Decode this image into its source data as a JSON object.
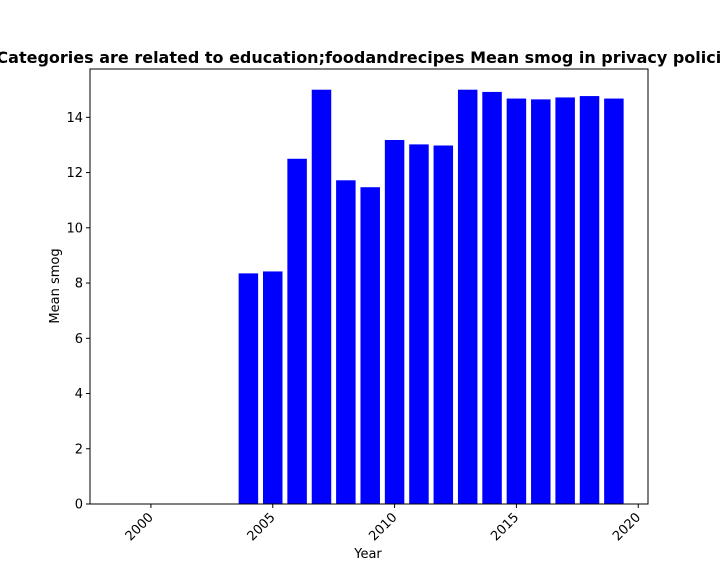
{
  "chart_data": {
    "type": "bar",
    "title": "Categories are related to education;foodandrecipes Mean smog in privacy policies",
    "xlabel": "Year",
    "ylabel": "Mean smog",
    "x": [
      2004,
      2005,
      2006,
      2007,
      2008,
      2009,
      2010,
      2011,
      2012,
      2013,
      2014,
      2015,
      2016,
      2017,
      2018,
      2019
    ],
    "values": [
      8.35,
      8.42,
      12.5,
      15.0,
      11.72,
      11.47,
      13.18,
      13.02,
      12.98,
      15.0,
      14.92,
      14.68,
      14.65,
      14.72,
      14.77,
      14.68
    ],
    "xlim": [
      1997.5,
      2020.4
    ],
    "ylim": [
      0,
      15.75
    ],
    "xticks": [
      2000,
      2005,
      2010,
      2015,
      2020
    ],
    "yticks": [
      0,
      2,
      4,
      6,
      8,
      10,
      12,
      14
    ],
    "bar_color": "#0000ff",
    "grid": false,
    "legend": "none"
  }
}
